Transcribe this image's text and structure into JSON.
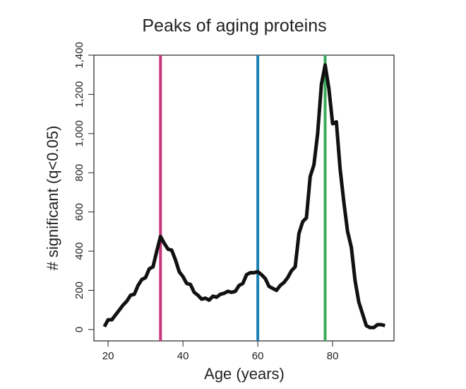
{
  "chart_data": {
    "type": "line",
    "title": "Peaks of aging proteins",
    "xlabel": "Age (years)",
    "ylabel": "# significant (q<0.05)",
    "x": [
      19,
      20,
      21,
      22,
      23,
      24,
      25,
      26,
      27,
      28,
      29,
      30,
      31,
      32,
      33,
      34,
      35,
      36,
      37,
      38,
      39,
      40,
      41,
      42,
      43,
      44,
      45,
      46,
      47,
      48,
      49,
      50,
      51,
      52,
      53,
      54,
      55,
      56,
      57,
      58,
      59,
      60,
      61,
      62,
      63,
      64,
      65,
      66,
      67,
      68,
      69,
      70,
      71,
      72,
      73,
      74,
      75,
      76,
      77,
      78,
      79,
      80,
      81,
      82,
      83,
      84,
      85,
      86,
      87,
      88,
      89,
      90,
      91,
      92,
      93,
      94
    ],
    "series": [
      {
        "color": "#111111",
        "values": [
          15,
          50,
          50,
          75,
          100,
          125,
          145,
          175,
          180,
          225,
          255,
          265,
          310,
          320,
          400,
          475,
          440,
          410,
          405,
          355,
          295,
          270,
          235,
          230,
          190,
          175,
          155,
          160,
          150,
          170,
          165,
          180,
          185,
          195,
          190,
          195,
          225,
          235,
          280,
          290,
          290,
          295,
          280,
          260,
          220,
          210,
          200,
          225,
          240,
          265,
          300,
          320,
          490,
          550,
          570,
          780,
          840,
          1000,
          1250,
          1350,
          1230,
          1050,
          1060,
          820,
          650,
          500,
          420,
          250,
          140,
          80,
          20,
          10,
          10,
          25,
          25,
          20
        ]
      }
    ],
    "vlines": [
      {
        "x": 34,
        "color": "#c8367a"
      },
      {
        "x": 60,
        "color": "#1f7fb4"
      },
      {
        "x": 78,
        "color": "#3aaa5a"
      }
    ],
    "xlim": [
      16.2,
      96.4
    ],
    "ylim": [
      -58,
      1400
    ],
    "xticks": [
      20,
      40,
      60,
      80
    ],
    "yticks": [
      0,
      200,
      400,
      600,
      800,
      {
        "value": 1000,
        "label": "1,000"
      },
      {
        "value": 1200,
        "label": "1,200"
      },
      {
        "value": 1400,
        "label": "1,400"
      }
    ],
    "grid": false
  }
}
